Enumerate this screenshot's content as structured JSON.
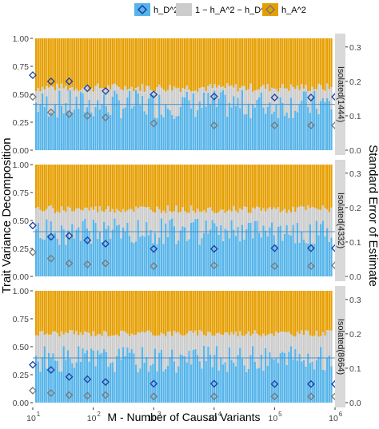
{
  "chart_data": {
    "type": "bar",
    "legend": {
      "placement": "top",
      "items": [
        {
          "key": "hd",
          "label": "h_D^2",
          "color": "#56B4E9",
          "shape": "diamond"
        },
        {
          "key": "other",
          "label": "1 − h_A^2 − h_D^2",
          "color": "#CCCCCC",
          "shape": "square"
        },
        {
          "key": "ha",
          "label": "h_A^2",
          "color": "#E69F00",
          "shape": "diamond"
        }
      ]
    },
    "ylabel_left": "Trait Variance Decomposition",
    "ylabel_right": "Standard Error of Estimate",
    "xlabel": "M - Number of Causal Variants",
    "x_ticks": [
      {
        "value": 10,
        "label": "10",
        "exp": "1"
      },
      {
        "value": 100,
        "label": "10",
        "exp": "2"
      },
      {
        "value": 1000,
        "label": "10",
        "exp": "3"
      },
      {
        "value": 10000,
        "label": "10",
        "exp": "4"
      },
      {
        "value": 100000,
        "label": "10",
        "exp": "5"
      },
      {
        "value": 1000000,
        "label": "10",
        "exp": "6"
      }
    ],
    "left_ticks": [
      "0.00",
      "0.25",
      "0.50",
      "0.75",
      "1.00"
    ],
    "left_ylim": [
      0,
      1
    ],
    "right_ticks": [
      "0.0",
      "0.1",
      "0.2",
      "0.3"
    ],
    "right_ylim": [
      0,
      0.325
    ],
    "colors": {
      "hd": "#56B4E9",
      "other": "#CCCCCC",
      "ha": "#E69F00",
      "hd_marker": "#1A3FA0",
      "ha_marker": "#777777",
      "line": "#4A90C8"
    },
    "panels": [
      {
        "strip_label": "Isolated(1444)",
        "hd_base": 0.41,
        "hd_noise": 0.13,
        "hd_line": 0.41,
        "ha_start": 0.56,
        "ha_noise": 0.04,
        "seed": 7,
        "se_x": [
          10,
          20,
          40,
          80,
          160,
          1000,
          10000,
          100000,
          400000,
          1000000
        ],
        "se_hd": [
          0.218,
          0.2,
          0.2,
          0.18,
          0.172,
          0.162,
          0.156,
          0.153,
          0.153,
          0.155
        ],
        "se_ha": [
          0.155,
          0.11,
          0.105,
          0.1,
          0.095,
          0.078,
          0.072,
          0.072,
          0.072,
          0.072
        ]
      },
      {
        "strip_label": "Isolated(4332)",
        "hd_base": 0.4,
        "hd_noise": 0.12,
        "hd_line": 0.4,
        "ha_start": 0.6,
        "ha_noise": 0.035,
        "seed": 19,
        "se_x": [
          10,
          20,
          40,
          80,
          160,
          1000,
          10000,
          100000,
          400000,
          1000000
        ],
        "se_hd": [
          0.148,
          0.115,
          0.118,
          0.105,
          0.095,
          0.08,
          0.08,
          0.082,
          0.082,
          0.082
        ],
        "se_ha": [
          0.07,
          0.052,
          0.038,
          0.035,
          0.038,
          0.03,
          0.032,
          0.03,
          0.03,
          0.032
        ]
      },
      {
        "strip_label": "Isolated(8664)",
        "hd_base": 0.39,
        "hd_noise": 0.12,
        "hd_line": 0.4,
        "ha_start": 0.62,
        "ha_noise": 0.03,
        "seed": 31,
        "se_x": [
          10,
          20,
          40,
          80,
          160,
          1000,
          10000,
          100000,
          400000,
          1000000
        ],
        "se_hd": [
          0.11,
          0.095,
          0.075,
          0.068,
          0.06,
          0.055,
          0.055,
          0.054,
          0.054,
          0.054
        ],
        "se_ha": [
          0.035,
          0.028,
          0.022,
          0.02,
          0.022,
          0.018,
          0.018,
          0.018,
          0.018,
          0.018
        ]
      }
    ]
  }
}
